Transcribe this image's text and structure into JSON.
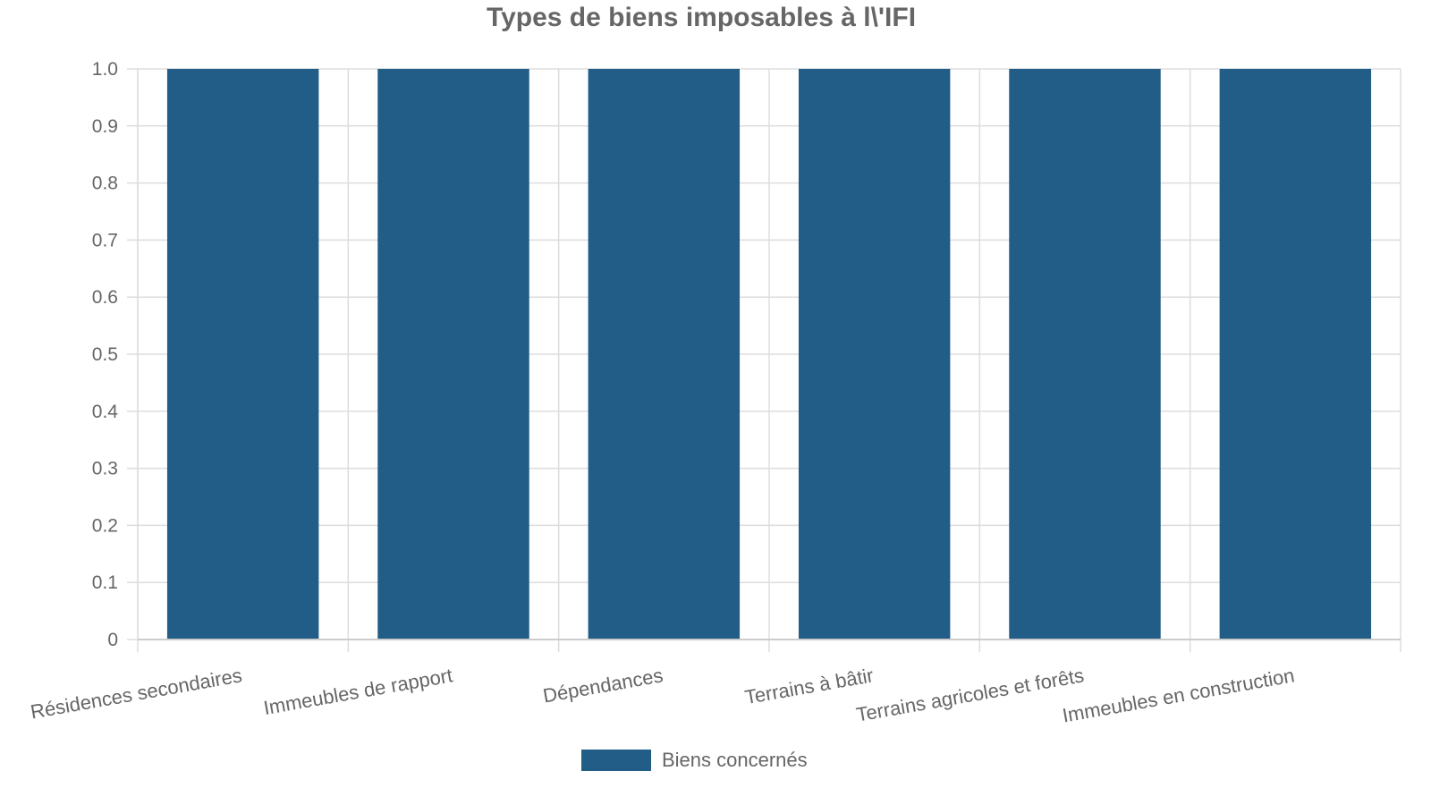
{
  "chart_data": {
    "type": "bar",
    "title": "Types de biens imposables à l\\'IFI",
    "categories": [
      "Résidences secondaires",
      "Immeubles de rapport",
      "Dépendances",
      "Terrains à bâtir",
      "Terrains agricoles et forêts",
      "Immeubles en construction"
    ],
    "series": [
      {
        "name": "Biens concernés",
        "values": [
          1,
          1,
          1,
          1,
          1,
          1
        ],
        "color": "#215d87"
      }
    ],
    "ylim": [
      0,
      1
    ],
    "yticks": [
      "0",
      "0.1",
      "0.2",
      "0.3",
      "0.4",
      "0.5",
      "0.6",
      "0.7",
      "0.8",
      "0.9",
      "1.0"
    ],
    "grid": true,
    "legend_position": "bottom"
  }
}
